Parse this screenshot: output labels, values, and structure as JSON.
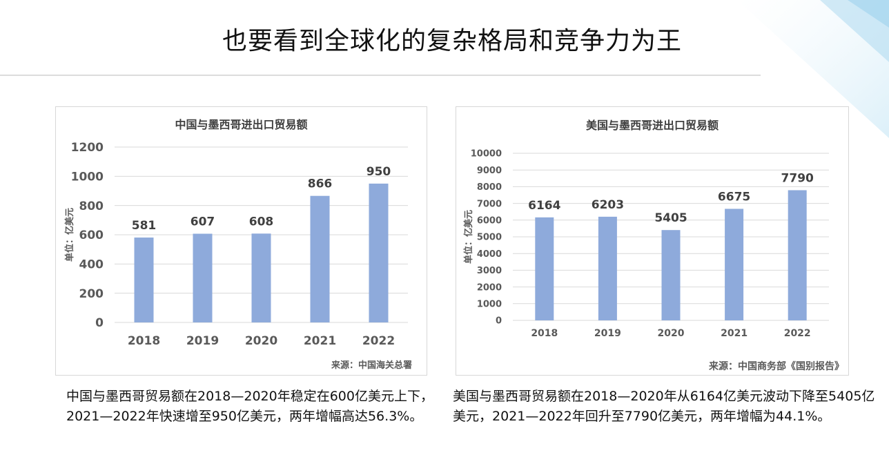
{
  "title": "也要看到全球化的复杂格局和竞争力为王",
  "colors": {
    "bar": "#8eaadb",
    "grid": "#d9d9d9",
    "text": "#595959",
    "label": "#404040"
  },
  "charts": [
    {
      "source": "来源：中国海关总署",
      "caption": "中国与墨西哥贸易额在2018—2020年稳定在600亿美元上下，2021—2022年快速增至950亿美元，两年增幅高达56.3%。"
    },
    {
      "source": "来源：中国商务部《国别报告》",
      "caption": "美国与墨西哥贸易额在2018—2020年从6164亿美元波动下降至5405亿美元，2021—2022年回升至7790亿美元，两年增幅为44.1%。"
    }
  ],
  "chart_data": [
    {
      "type": "bar",
      "title": "中国与墨西哥进出口贸易额",
      "ylabel": "单位：亿美元",
      "categories": [
        "2018",
        "2019",
        "2020",
        "2021",
        "2022"
      ],
      "values": [
        581,
        607,
        608,
        866,
        950
      ],
      "ylim": [
        0,
        1200
      ],
      "yticks": [
        0,
        200,
        400,
        600,
        800,
        1000,
        1200
      ],
      "grid": true
    },
    {
      "type": "bar",
      "title": "美国与墨西哥进出口贸易额",
      "ylabel": "单位：亿美元",
      "categories": [
        "2018",
        "2019",
        "2020",
        "2021",
        "2022"
      ],
      "values": [
        6164,
        6203,
        5405,
        6675,
        7790
      ],
      "ylim": [
        0,
        10000
      ],
      "yticks": [
        0,
        1000,
        2000,
        3000,
        4000,
        5000,
        6000,
        7000,
        8000,
        9000,
        10000
      ],
      "grid": true
    }
  ]
}
